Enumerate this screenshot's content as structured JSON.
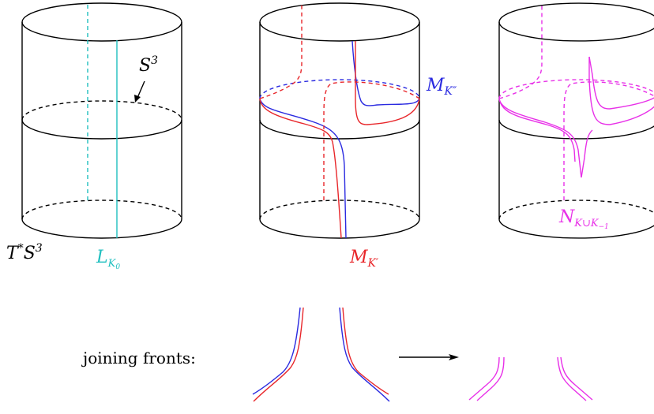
{
  "colors": {
    "ink": "#000000",
    "cyan": "#1fbfbf",
    "red": "#e8262a",
    "blue": "#2a2ae0",
    "magenta": "#e830e8"
  },
  "labels": {
    "s3": "S",
    "s3_sup": "3",
    "tstar_s3": "T",
    "tstar_sup": "*",
    "tstar_s": "S",
    "tstar_s_sup": "3",
    "l_k0": "L",
    "l_k0_sub": "K",
    "l_k0_subsub": "0",
    "m_k_double": "M",
    "m_k_double_sub": "K″",
    "m_k_prime": "M",
    "m_k_prime_sub": "K′",
    "n_k": "N",
    "n_k_sub": "K∪K",
    "n_k_subsub": "−1",
    "joining_fronts": "joining fronts:"
  }
}
